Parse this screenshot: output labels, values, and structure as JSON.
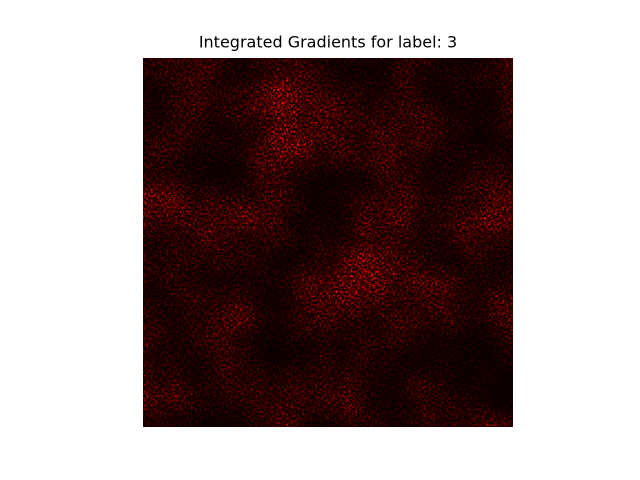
{
  "title": "Integrated Gradients for label: 3"
}
